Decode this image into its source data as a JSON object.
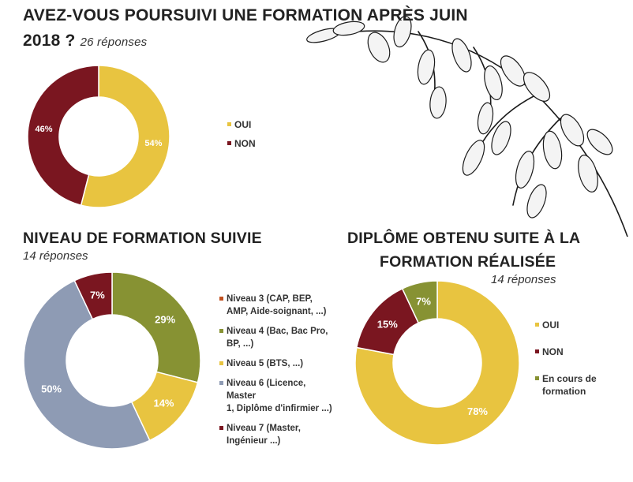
{
  "header": {
    "title_line1": "AVEZ-VOUS POURSUIVI UNE FORMATION APRÈS JUIN",
    "title_line2": "2018 ?",
    "subtitle": "26 réponses"
  },
  "section2": {
    "title": "NIVEAU DE FORMATION SUIVIE",
    "subtitle": "14 réponses"
  },
  "section3": {
    "title_line1": "DIPLÔME OBTENU SUITE À LA",
    "title_line2": "FORMATION RÉALISÉE",
    "subtitle": "14 réponses"
  },
  "colors": {
    "yellow": "#E8C440",
    "darkred": "#7A1620",
    "olive": "#879233",
    "slate": "#8E9BB4",
    "orange": "#C0501F"
  },
  "decoration_icon": "oat-branch-icon",
  "chart_data": [
    {
      "type": "pie",
      "title": "AVEZ-VOUS POURSUIVI UNE FORMATION APRÈS JUIN 2018 ?",
      "subtitle": "26 réponses",
      "categories": [
        "OUI",
        "NON"
      ],
      "values": [
        54,
        46
      ],
      "labels": [
        "54%",
        "46%"
      ],
      "colors": [
        "#E8C440",
        "#7A1620"
      ],
      "legend": [
        "OUI",
        "NON"
      ],
      "legend_position": "right"
    },
    {
      "type": "pie",
      "title": "NIVEAU DE FORMATION SUIVIE",
      "subtitle": "14 réponses",
      "categories": [
        "Niveau 3 (CAP, BEP, AMP, Aide-soignant, ...)",
        "Niveau 4 (Bac, Bac Pro, BP, ...)",
        "Niveau 5 (BTS, ...)",
        "Niveau 6 (Licence, Master 1, Diplôme d'infirmier ...)",
        "Niveau 7 (Master, Ingénieur ...)"
      ],
      "values": [
        0,
        29,
        14,
        50,
        7
      ],
      "labels": [
        "",
        "29%",
        "14%",
        "50%",
        "7%"
      ],
      "colors": [
        "#C0501F",
        "#879233",
        "#E8C440",
        "#8E9BB4",
        "#7A1620"
      ],
      "legend": [
        "Niveau 3 (CAP, BEP,\nAMP, Aide-soignant, ...)",
        "Niveau 4 (Bac, Bac Pro,\nBP, ...)",
        "Niveau 5 (BTS, ...)",
        "Niveau 6 (Licence, Master\n1, Diplôme d'infirmier ...)",
        "Niveau 7 (Master,\nIngénieur ...)"
      ],
      "legend_position": "right"
    },
    {
      "type": "pie",
      "title": "DIPLÔME OBTENU SUITE À LA FORMATION RÉALISÉE",
      "subtitle": "14 réponses",
      "categories": [
        "OUI",
        "NON",
        "En cours de formation"
      ],
      "values": [
        78,
        15,
        7
      ],
      "labels": [
        "78%",
        "15%",
        "7%"
      ],
      "colors": [
        "#E8C440",
        "#7A1620",
        "#879233"
      ],
      "legend": [
        "OUI",
        "NON",
        "En cours de\nformation"
      ],
      "legend_position": "right"
    }
  ]
}
